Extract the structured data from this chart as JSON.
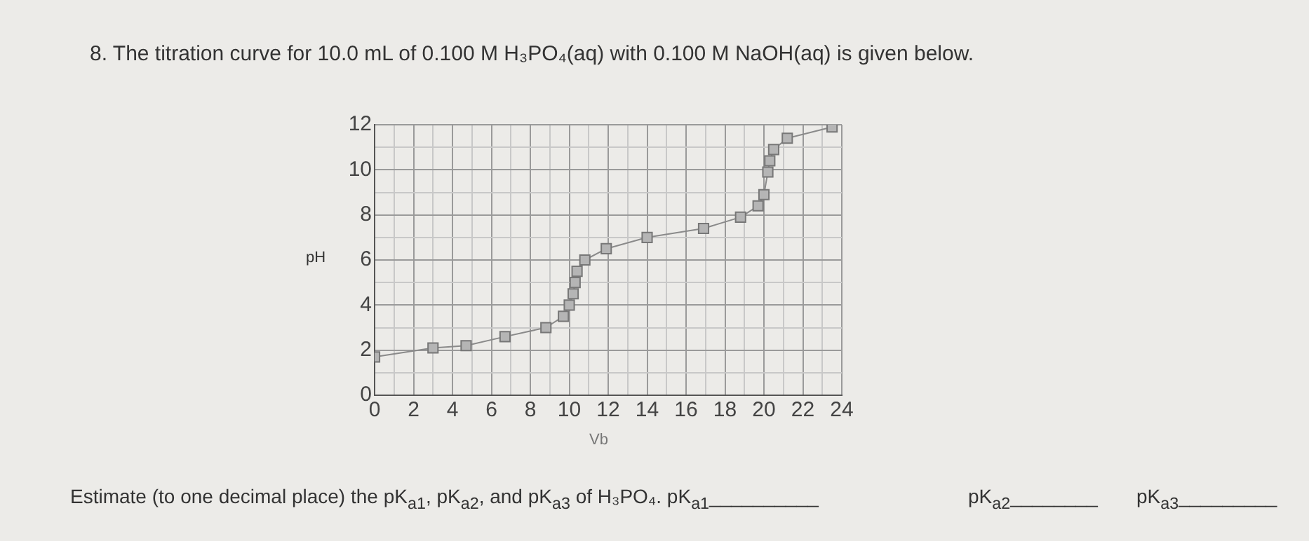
{
  "chart_data": {
    "type": "line",
    "title": "8.   The titration curve for 10.0 mL of 0.100 M H₃PO₄(aq) with 0.100 M NaOH(aq) is given below.",
    "xlabel": "Vb",
    "ylabel": "pH",
    "x": [
      0.0,
      3.0,
      4.7,
      6.7,
      8.8,
      9.7,
      10.0,
      10.2,
      10.3,
      10.4,
      10.8,
      11.9,
      14.0,
      16.9,
      18.8,
      19.7,
      20.0,
      20.2,
      20.3,
      20.5,
      21.2,
      23.5
    ],
    "series": [
      {
        "color": "#8a8a8a",
        "values": [
          1.7,
          2.1,
          2.2,
          2.6,
          3.0,
          3.5,
          4.0,
          4.5,
          5.0,
          5.5,
          6.0,
          6.5,
          7.0,
          7.4,
          7.9,
          8.4,
          8.9,
          9.9,
          10.4,
          10.9,
          11.4,
          11.9
        ]
      }
    ],
    "xlim": [
      0,
      24
    ],
    "ylim": [
      0,
      12
    ],
    "xticks": [
      0,
      {
        "value": 1,
        "label": null
      },
      2,
      {
        "value": 3,
        "label": null
      },
      4,
      {
        "value": 5,
        "label": null
      },
      6,
      {
        "value": 7,
        "label": null
      },
      8,
      {
        "value": 9,
        "label": null
      },
      10,
      {
        "value": 11,
        "label": null
      },
      12,
      {
        "value": 13,
        "label": null
      },
      14,
      {
        "value": 15,
        "label": null
      },
      16,
      {
        "value": 17,
        "label": null
      },
      18,
      {
        "value": 19,
        "label": null
      },
      20,
      {
        "value": 21,
        "label": null
      },
      22,
      {
        "value": 23,
        "label": null
      },
      24
    ],
    "yticks": [
      0,
      {
        "value": 1,
        "label": null
      },
      2,
      {
        "value": 3,
        "label": null
      },
      4,
      {
        "value": 5,
        "label": null
      },
      6,
      {
        "value": 7,
        "label": null
      },
      8,
      {
        "value": 9,
        "label": null
      },
      10,
      {
        "value": 11,
        "label": null
      },
      12
    ],
    "grid": true,
    "marker": "square",
    "line_style": "solid",
    "legend": false,
    "annotations": [
      "Estimate (to one decimal place) the pK$_{a1}$, pK$_{a2}$, and pK$_{a3}$ of H₃PO₄.  pK$_{a1}$__________",
      "pK$_{a2}$________",
      "pK$_{a3}$_________"
    ]
  }
}
